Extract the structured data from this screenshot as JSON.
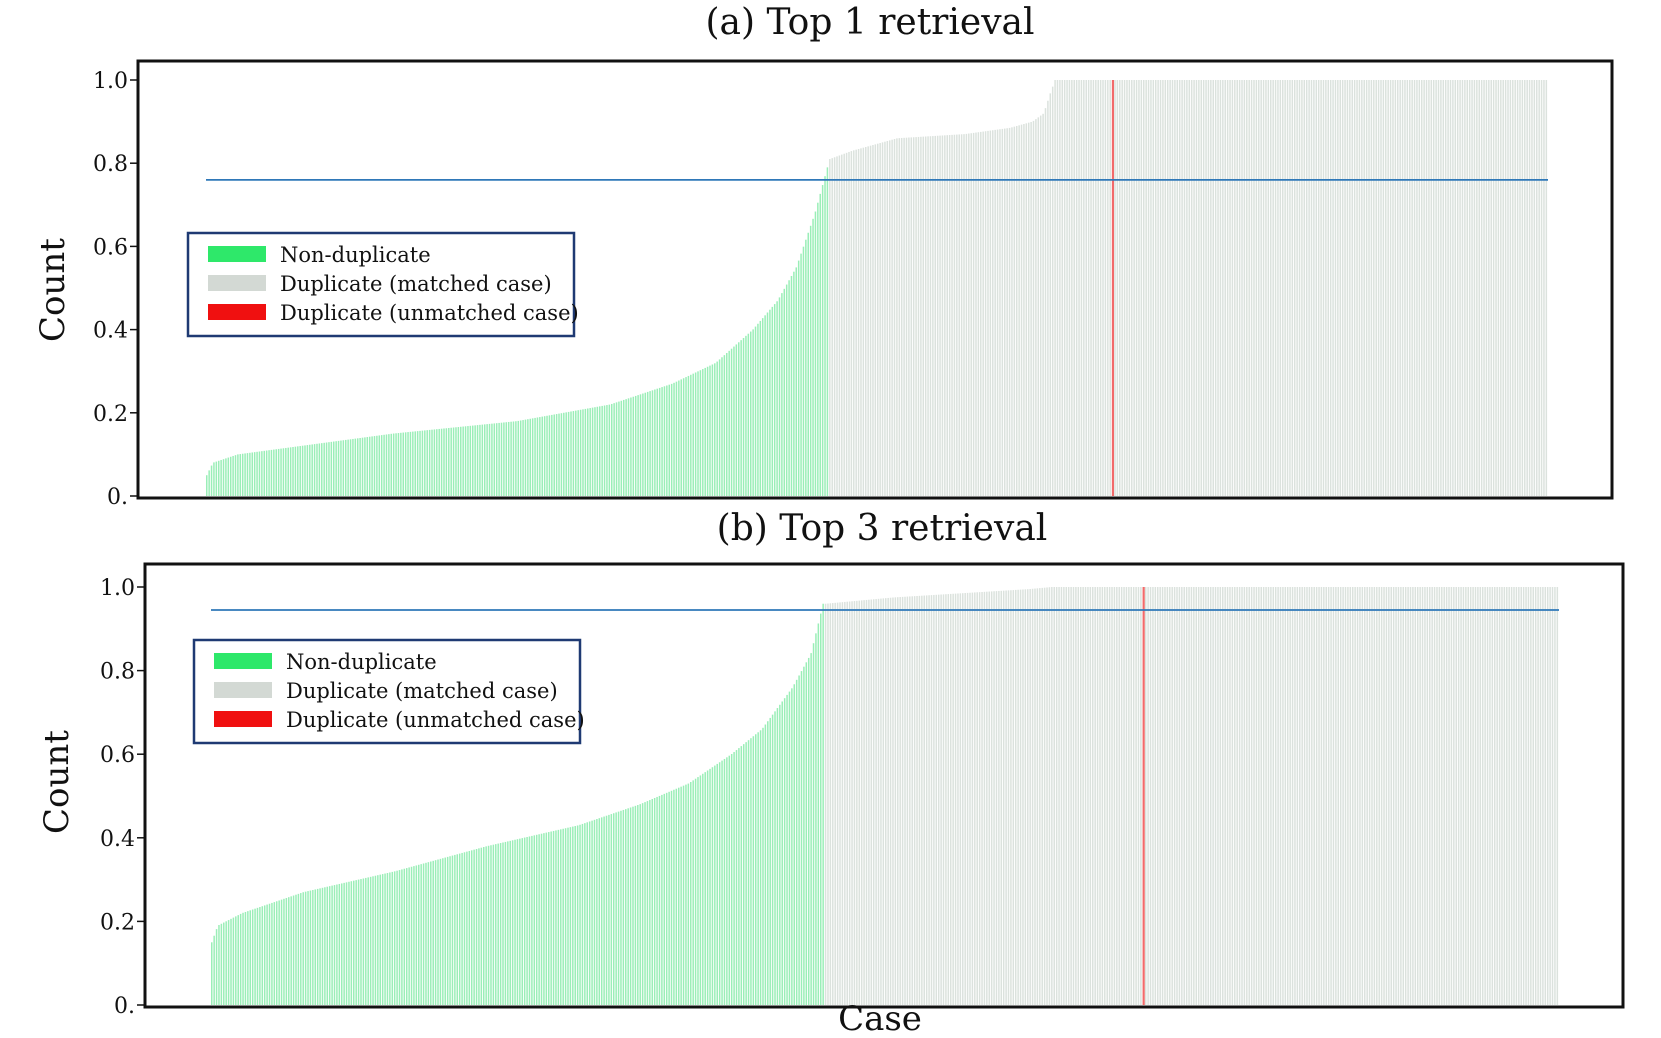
{
  "chart_data": [
    {
      "type": "bar",
      "title": "(a) Top 1 retrieval",
      "ylabel": "Count",
      "xlabel": "",
      "ylim": [
        0,
        1.0
      ],
      "yticks": [
        "0.",
        "0.2",
        "0.4",
        "0.6",
        "0.8",
        "1.0"
      ],
      "threshold": 0.76,
      "legend": {
        "placement": "left",
        "entries": [
          {
            "label": "Non-duplicate",
            "color": "#2ee86a"
          },
          {
            "label": "Duplicate (matched case)",
            "color": "#d3d9d4"
          },
          {
            "label": "Duplicate (unmatched case)",
            "color": "#f01010"
          }
        ]
      },
      "segments": [
        {
          "category": "Non-duplicate",
          "count": 260,
          "anchors": [
            [
              0,
              0.05
            ],
            [
              0.01,
              0.08
            ],
            [
              0.05,
              0.1
            ],
            [
              0.15,
              0.12
            ],
            [
              0.3,
              0.15
            ],
            [
              0.5,
              0.18
            ],
            [
              0.65,
              0.22
            ],
            [
              0.75,
              0.27
            ],
            [
              0.82,
              0.32
            ],
            [
              0.88,
              0.4
            ],
            [
              0.92,
              0.47
            ],
            [
              0.95,
              0.55
            ],
            [
              0.98,
              0.68
            ],
            [
              1.0,
              0.79
            ]
          ]
        },
        {
          "category": "Duplicate (matched case)",
          "count": 95,
          "anchors": [
            [
              0,
              0.81
            ],
            [
              0.1,
              0.83
            ],
            [
              0.3,
              0.86
            ],
            [
              0.6,
              0.87
            ],
            [
              0.8,
              0.885
            ],
            [
              0.9,
              0.9
            ],
            [
              0.95,
              0.92
            ],
            [
              0.98,
              0.97
            ],
            [
              1.0,
              1.0
            ]
          ]
        },
        {
          "category": "Duplicate (matched case)",
          "count": 23,
          "anchors": [
            [
              0,
              1.0
            ],
            [
              1,
              1.0
            ]
          ]
        },
        {
          "category": "Duplicate (unmatched case)",
          "count": 1,
          "anchors": [
            [
              0,
              1.0
            ],
            [
              1,
              1.0
            ]
          ]
        },
        {
          "category": "Duplicate (matched case)",
          "count": 181,
          "anchors": [
            [
              0,
              1.0
            ],
            [
              1,
              1.0
            ]
          ]
        }
      ]
    },
    {
      "type": "bar",
      "title": "(b) Top 3 retrieval",
      "ylabel": "Count",
      "xlabel": "Case",
      "ylim": [
        0,
        1.0
      ],
      "yticks": [
        "0.",
        "0.2",
        "0.4",
        "0.6",
        "0.8",
        "1.0"
      ],
      "threshold": 0.945,
      "legend": {
        "placement": "left",
        "entries": [
          {
            "label": "Non-duplicate",
            "color": "#2ee86a"
          },
          {
            "label": "Duplicate (matched case)",
            "color": "#d3d9d4"
          },
          {
            "label": "Duplicate (unmatched case)",
            "color": "#f01010"
          }
        ]
      },
      "segments": [
        {
          "category": "Non-duplicate",
          "count": 255,
          "anchors": [
            [
              0,
              0.15
            ],
            [
              0.01,
              0.19
            ],
            [
              0.05,
              0.22
            ],
            [
              0.15,
              0.27
            ],
            [
              0.3,
              0.32
            ],
            [
              0.45,
              0.38
            ],
            [
              0.6,
              0.43
            ],
            [
              0.7,
              0.48
            ],
            [
              0.78,
              0.53
            ],
            [
              0.85,
              0.6
            ],
            [
              0.9,
              0.66
            ],
            [
              0.95,
              0.76
            ],
            [
              0.98,
              0.84
            ],
            [
              1.0,
              0.96
            ]
          ]
        },
        {
          "category": "Duplicate (matched case)",
          "count": 95,
          "anchors": [
            [
              0,
              0.96
            ],
            [
              0.3,
              0.975
            ],
            [
              0.6,
              0.985
            ],
            [
              0.9,
              0.995
            ],
            [
              1.0,
              1.0
            ]
          ]
        },
        {
          "category": "Duplicate (matched case)",
          "count": 37,
          "anchors": [
            [
              0,
              1.0
            ],
            [
              1,
              1.0
            ]
          ]
        },
        {
          "category": "Duplicate (unmatched case)",
          "count": 1,
          "anchors": [
            [
              0,
              1.0
            ],
            [
              1,
              1.0
            ]
          ]
        },
        {
          "category": "Duplicate (matched case)",
          "count": 172,
          "anchors": [
            [
              0,
              1.0
            ],
            [
              1,
              1.0
            ]
          ]
        }
      ]
    }
  ]
}
